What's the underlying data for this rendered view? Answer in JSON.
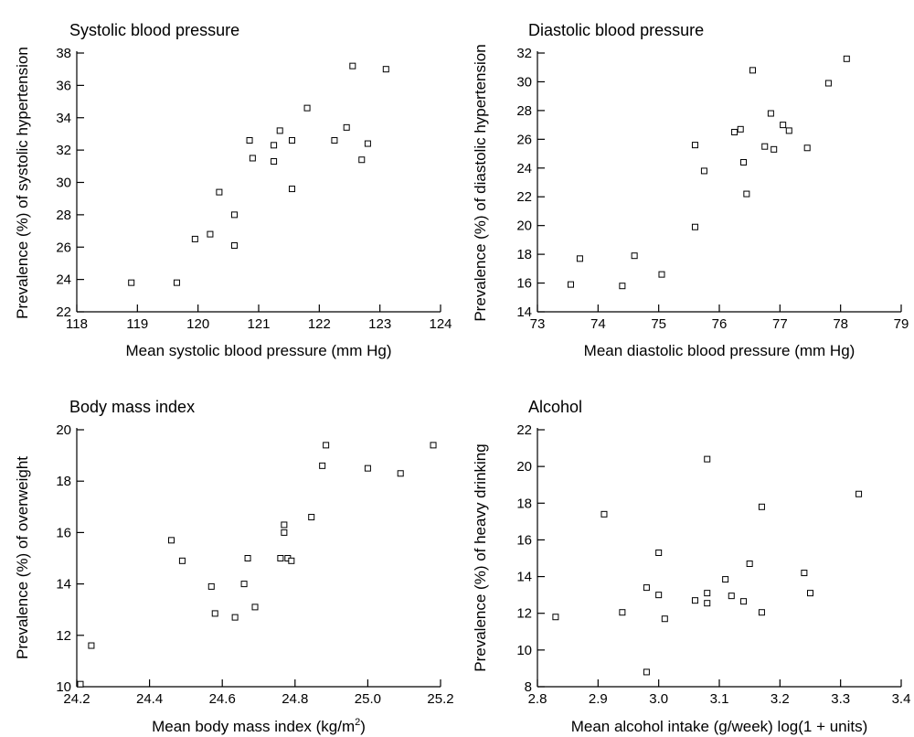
{
  "chart_data": [
    {
      "type": "scatter",
      "title": "Systolic blood pressure",
      "xlabel": "Mean systolic blood pressure (mm Hg)",
      "ylabel": "Prevalence (%) of systolic hypertension",
      "xlim": [
        118,
        124
      ],
      "ylim": [
        22,
        38
      ],
      "xticks": [
        118,
        119,
        120,
        121,
        122,
        123,
        124
      ],
      "yticks": [
        22,
        24,
        26,
        28,
        30,
        32,
        34,
        36,
        38
      ],
      "xtick_labels": [
        "118",
        "119",
        "120",
        "121",
        "122",
        "123",
        "124"
      ],
      "ytick_labels": [
        "22",
        "24",
        "26",
        "28",
        "30",
        "32",
        "34",
        "36",
        "38"
      ],
      "points": [
        {
          "x": 118.9,
          "y": 23.8
        },
        {
          "x": 119.65,
          "y": 23.8
        },
        {
          "x": 119.95,
          "y": 26.5
        },
        {
          "x": 120.2,
          "y": 26.8
        },
        {
          "x": 120.35,
          "y": 29.4
        },
        {
          "x": 120.6,
          "y": 28.0
        },
        {
          "x": 120.6,
          "y": 26.1
        },
        {
          "x": 120.85,
          "y": 32.6
        },
        {
          "x": 120.9,
          "y": 31.5
        },
        {
          "x": 121.25,
          "y": 32.3
        },
        {
          "x": 121.25,
          "y": 31.3
        },
        {
          "x": 121.35,
          "y": 33.2
        },
        {
          "x": 121.55,
          "y": 29.6
        },
        {
          "x": 121.55,
          "y": 32.6
        },
        {
          "x": 121.8,
          "y": 34.6
        },
        {
          "x": 122.25,
          "y": 32.6
        },
        {
          "x": 122.45,
          "y": 33.4
        },
        {
          "x": 122.55,
          "y": 37.2
        },
        {
          "x": 122.7,
          "y": 31.4
        },
        {
          "x": 122.8,
          "y": 32.4
        },
        {
          "x": 123.1,
          "y": 37.0
        }
      ]
    },
    {
      "type": "scatter",
      "title": "Diastolic blood pressure",
      "xlabel": "Mean diastolic blood pressure (mm Hg)",
      "ylabel": "Prevalence (%) of diastolic hypertension",
      "xlim": [
        73,
        79
      ],
      "ylim": [
        14,
        32
      ],
      "xticks": [
        73,
        74,
        75,
        76,
        77,
        78,
        79
      ],
      "yticks": [
        14,
        16,
        18,
        20,
        22,
        24,
        26,
        28,
        30,
        32
      ],
      "xtick_labels": [
        "73",
        "74",
        "75",
        "76",
        "77",
        "78",
        "79"
      ],
      "ytick_labels": [
        "14",
        "16",
        "18",
        "20",
        "22",
        "24",
        "26",
        "28",
        "30",
        "32"
      ],
      "points": [
        {
          "x": 73.55,
          "y": 15.9
        },
        {
          "x": 73.7,
          "y": 17.7
        },
        {
          "x": 74.4,
          "y": 15.8
        },
        {
          "x": 74.6,
          "y": 17.9
        },
        {
          "x": 75.05,
          "y": 16.6
        },
        {
          "x": 75.6,
          "y": 25.6
        },
        {
          "x": 75.6,
          "y": 19.9
        },
        {
          "x": 75.75,
          "y": 23.8
        },
        {
          "x": 76.25,
          "y": 26.5
        },
        {
          "x": 76.35,
          "y": 26.7
        },
        {
          "x": 76.4,
          "y": 24.4
        },
        {
          "x": 76.45,
          "y": 22.2
        },
        {
          "x": 76.55,
          "y": 30.8
        },
        {
          "x": 76.75,
          "y": 25.5
        },
        {
          "x": 76.85,
          "y": 27.8
        },
        {
          "x": 76.9,
          "y": 25.3
        },
        {
          "x": 77.05,
          "y": 27.0
        },
        {
          "x": 77.15,
          "y": 26.6
        },
        {
          "x": 77.45,
          "y": 25.4
        },
        {
          "x": 77.8,
          "y": 29.9
        },
        {
          "x": 78.1,
          "y": 31.6
        }
      ]
    },
    {
      "type": "scatter",
      "title": "Body mass index",
      "xlabel": "Mean body mass index (kg/m",
      "xlabel_superscript": "2",
      "xlabel_suffix": ")",
      "ylabel": "Prevalence (%) of overweight",
      "xlim": [
        24.2,
        25.2
      ],
      "ylim": [
        10,
        20
      ],
      "xticks": [
        24.2,
        24.4,
        24.6,
        24.8,
        25.0,
        25.2
      ],
      "yticks": [
        10,
        12,
        14,
        16,
        18,
        20
      ],
      "xtick_labels": [
        "24.2",
        "24.4",
        "24.6",
        "24.8",
        "25.0",
        "25.2"
      ],
      "ytick_labels": [
        "10",
        "12",
        "14",
        "16",
        "18",
        "20"
      ],
      "points": [
        {
          "x": 24.21,
          "y": 10.1
        },
        {
          "x": 24.24,
          "y": 11.6
        },
        {
          "x": 24.46,
          "y": 15.7
        },
        {
          "x": 24.49,
          "y": 14.9
        },
        {
          "x": 24.57,
          "y": 13.9
        },
        {
          "x": 24.58,
          "y": 12.85
        },
        {
          "x": 24.635,
          "y": 12.7
        },
        {
          "x": 24.66,
          "y": 14.0
        },
        {
          "x": 24.67,
          "y": 15.0
        },
        {
          "x": 24.69,
          "y": 13.1
        },
        {
          "x": 24.76,
          "y": 15.0
        },
        {
          "x": 24.77,
          "y": 16.3
        },
        {
          "x": 24.77,
          "y": 16.0
        },
        {
          "x": 24.78,
          "y": 15.0
        },
        {
          "x": 24.79,
          "y": 14.9
        },
        {
          "x": 24.845,
          "y": 16.6
        },
        {
          "x": 24.875,
          "y": 18.6
        },
        {
          "x": 24.885,
          "y": 19.4
        },
        {
          "x": 25.0,
          "y": 18.5
        },
        {
          "x": 25.09,
          "y": 18.3
        },
        {
          "x": 25.18,
          "y": 19.4
        }
      ]
    },
    {
      "type": "scatter",
      "title": "Alcohol",
      "xlabel": "Mean alcohol intake (g/week) log(1 + units)",
      "ylabel": "Prevalence (%) of heavy drinking",
      "xlim": [
        2.8,
        3.4
      ],
      "ylim": [
        8,
        22
      ],
      "xticks": [
        2.8,
        2.9,
        3.0,
        3.1,
        3.2,
        3.3,
        3.4
      ],
      "yticks": [
        8,
        10,
        12,
        14,
        16,
        18,
        20,
        22
      ],
      "xtick_labels": [
        "2.8",
        "2.9",
        "3.0",
        "3.1",
        "3.2",
        "3.3",
        "3.4"
      ],
      "ytick_labels": [
        "8",
        "10",
        "12",
        "14",
        "16",
        "18",
        "20",
        "22"
      ],
      "points": [
        {
          "x": 2.83,
          "y": 11.8
        },
        {
          "x": 2.91,
          "y": 17.4
        },
        {
          "x": 2.94,
          "y": 12.05
        },
        {
          "x": 2.98,
          "y": 13.4
        },
        {
          "x": 2.98,
          "y": 8.8
        },
        {
          "x": 3.0,
          "y": 15.3
        },
        {
          "x": 3.0,
          "y": 13.0
        },
        {
          "x": 3.01,
          "y": 11.7
        },
        {
          "x": 3.06,
          "y": 12.7
        },
        {
          "x": 3.08,
          "y": 20.4
        },
        {
          "x": 3.08,
          "y": 13.1
        },
        {
          "x": 3.08,
          "y": 12.55
        },
        {
          "x": 3.11,
          "y": 13.85
        },
        {
          "x": 3.12,
          "y": 12.95
        },
        {
          "x": 3.14,
          "y": 12.65
        },
        {
          "x": 3.15,
          "y": 14.7
        },
        {
          "x": 3.17,
          "y": 17.8
        },
        {
          "x": 3.17,
          "y": 12.05
        },
        {
          "x": 3.24,
          "y": 14.2
        },
        {
          "x": 3.25,
          "y": 13.1
        },
        {
          "x": 3.33,
          "y": 18.5
        }
      ]
    }
  ]
}
